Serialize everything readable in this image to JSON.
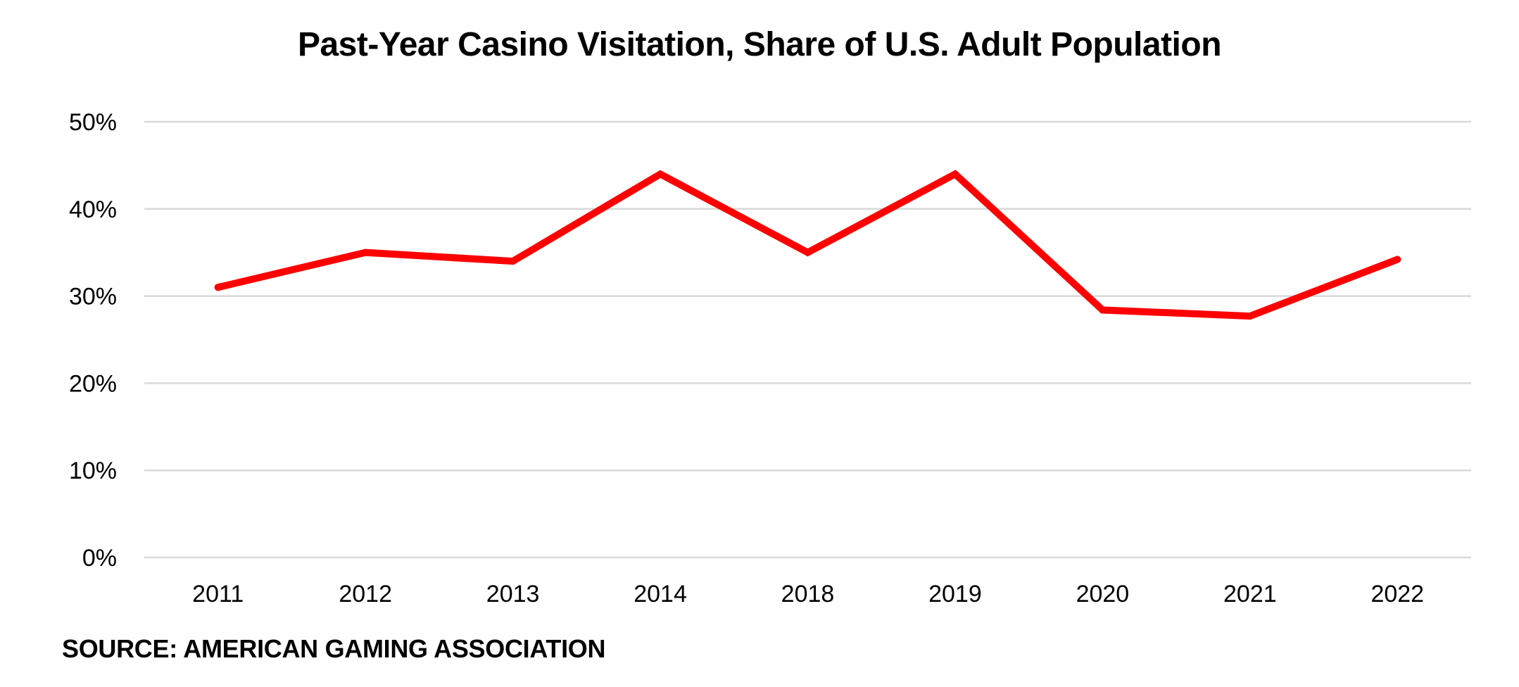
{
  "chart_data": {
    "type": "line",
    "title": "Past-Year Casino Visitation, Share of U.S. Adult Population",
    "categories": [
      "2011",
      "2012",
      "2013",
      "2014",
      "2018",
      "2019",
      "2020",
      "2021",
      "2022"
    ],
    "series": [
      {
        "values": [
          31,
          35,
          34,
          44,
          35,
          44,
          28.4,
          27.7,
          34.2
        ],
        "color": "#ff0000"
      }
    ],
    "ylim": [
      0,
      50
    ],
    "yticks": [
      0,
      10,
      20,
      30,
      40,
      50
    ],
    "ytick_labels": [
      "0%",
      "10%",
      "20%",
      "30%",
      "40%",
      "50%"
    ],
    "grid": true,
    "legend": "none"
  },
  "source": "SOURCE: AMERICAN GAMING ASSOCIATION"
}
